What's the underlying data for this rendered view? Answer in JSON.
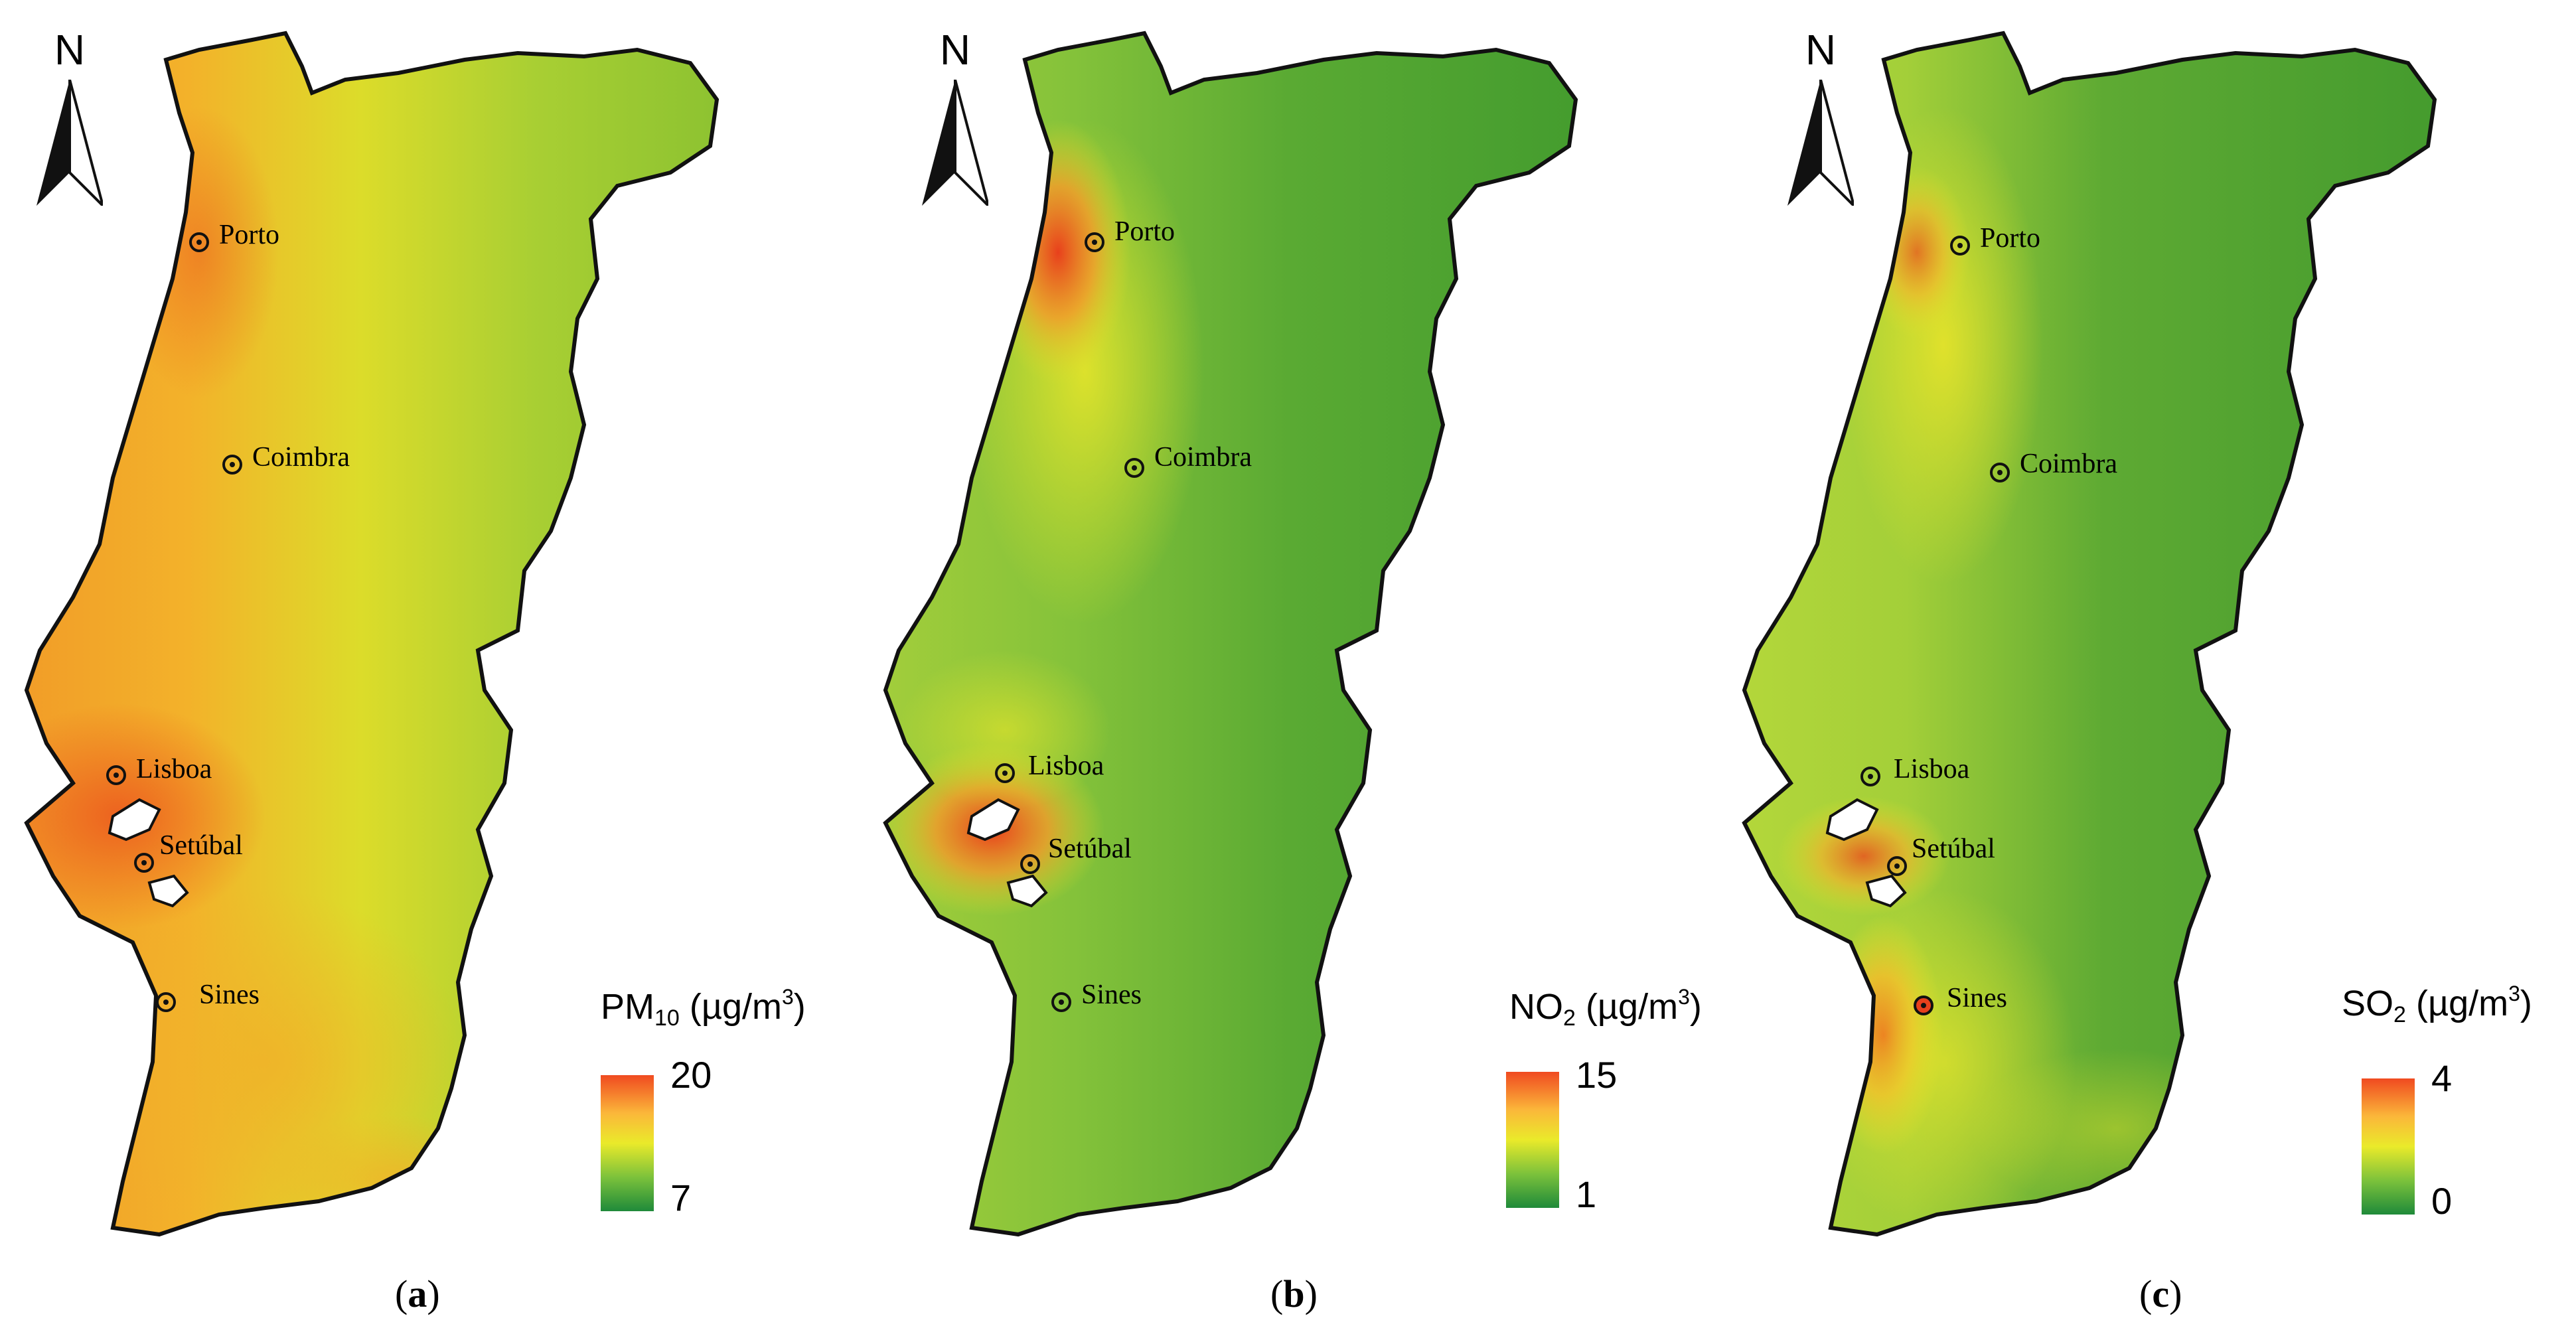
{
  "north_label": "N",
  "cities": [
    "Porto",
    "Coimbra",
    "Lisboa",
    "Setúbal",
    "Sines"
  ],
  "panels": [
    {
      "caption_letter": "a",
      "legend": {
        "pollutant": "PM",
        "subscript": "10",
        "unit": "(µg/m",
        "unit_sup": "3",
        "unit_close": ")",
        "max": "20",
        "min": "7"
      },
      "colors": {
        "coast": "#f4a126",
        "coast_hot": "#ee6a1f",
        "interior": "#7fbd2f",
        "mid": "#d9dd26"
      }
    },
    {
      "caption_letter": "b",
      "legend": {
        "pollutant": "NO",
        "subscript": "2",
        "unit": "(µg/m",
        "unit_sup": "3",
        "unit_close": ")",
        "max": "15",
        "min": "1"
      },
      "colors": {
        "coast": "#a8cf3a",
        "coast_hot": "#e84a1d",
        "interior": "#3e9a2c",
        "mid": "#8cc53a"
      }
    },
    {
      "caption_letter": "c",
      "legend": {
        "pollutant": "SO",
        "subscript": "2",
        "unit": "(µg/m",
        "unit_sup": "3",
        "unit_close": ")",
        "max": "4",
        "min": "0"
      },
      "colors": {
        "coast": "#b9d93a",
        "coast_hot": "#f49a2a",
        "interior": "#3c962c",
        "mid": "#8fc43a"
      }
    }
  ],
  "legend_colors": {
    "top": "#f04a20",
    "upper": "#fbb73a",
    "middle": "#eaea2a",
    "lower": "#7cc23b",
    "bottom": "#1f8a3a"
  }
}
